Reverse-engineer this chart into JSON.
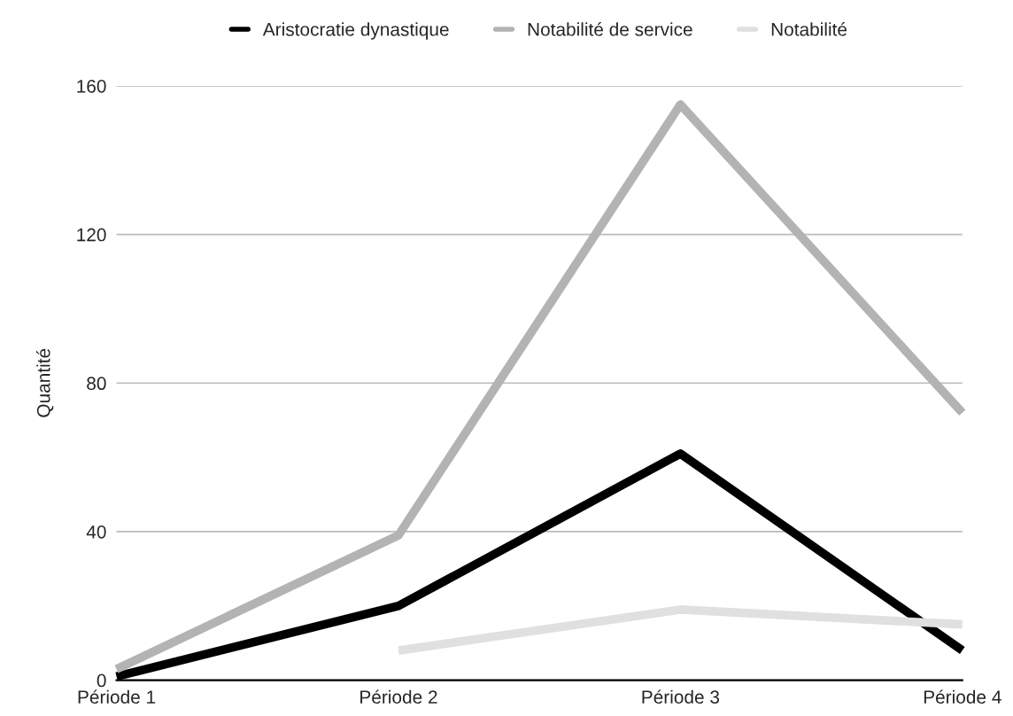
{
  "chart_data": {
    "type": "line",
    "ylabel": "Quantité",
    "categories": [
      "Période 1",
      "Période 2",
      "Période 3",
      "Période 4"
    ],
    "series": [
      {
        "name": "Aristocratie dynastique",
        "color": "#000000",
        "values": [
          1,
          20,
          61,
          8
        ]
      },
      {
        "name": "Notabilité de service",
        "color": "#b3b3b3",
        "values": [
          3,
          39,
          155,
          72
        ]
      },
      {
        "name": "Notabilité",
        "color": "#e0e0e0",
        "values": [
          null,
          8,
          19,
          15
        ]
      }
    ],
    "ylim": [
      0,
      160
    ],
    "yticks": [
      0,
      40,
      80,
      120,
      160
    ],
    "grid": "y",
    "legend": "top",
    "marker": "none",
    "line_style": "solid"
  }
}
